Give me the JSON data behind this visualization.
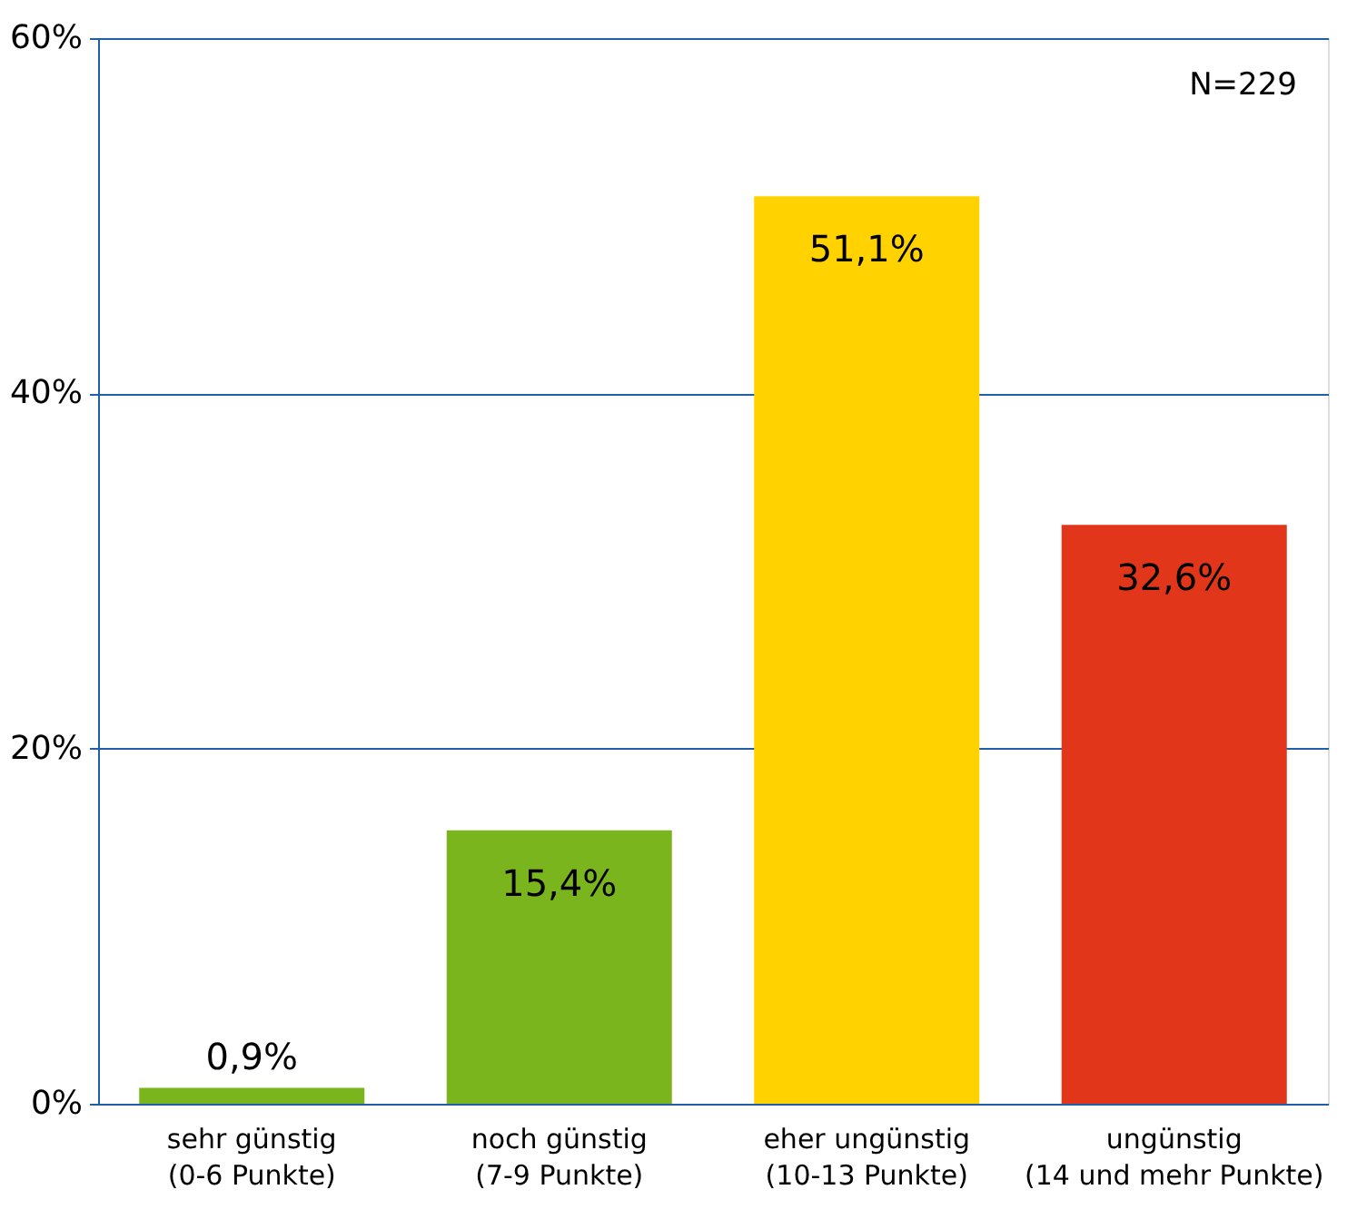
{
  "chart_data": {
    "type": "bar",
    "categories": [
      "sehr günstig\n(0-6 Punkte)",
      "noch günstig\n(7-9 Punkte)",
      "eher ungünstig\n(10-13 Punkte)",
      "ungünstig\n(14 und mehr Punkte)"
    ],
    "values": [
      0.9,
      15.4,
      51.1,
      32.6
    ],
    "colors": [
      "#7ab51d",
      "#7ab51d",
      "#ffd200",
      "#e2361a"
    ],
    "value_labels": [
      "0,9%",
      "15,4%",
      "51,1%",
      "32,6%"
    ],
    "ylim": [
      0,
      60
    ],
    "yticks": [
      {
        "value": 0,
        "label": "0%"
      },
      {
        "value": 20,
        "label": "20%"
      },
      {
        "value": 40,
        "label": "40%"
      },
      {
        "value": 60,
        "label": "60%"
      }
    ],
    "grid": "y",
    "annotations": [
      "N=229"
    ]
  }
}
